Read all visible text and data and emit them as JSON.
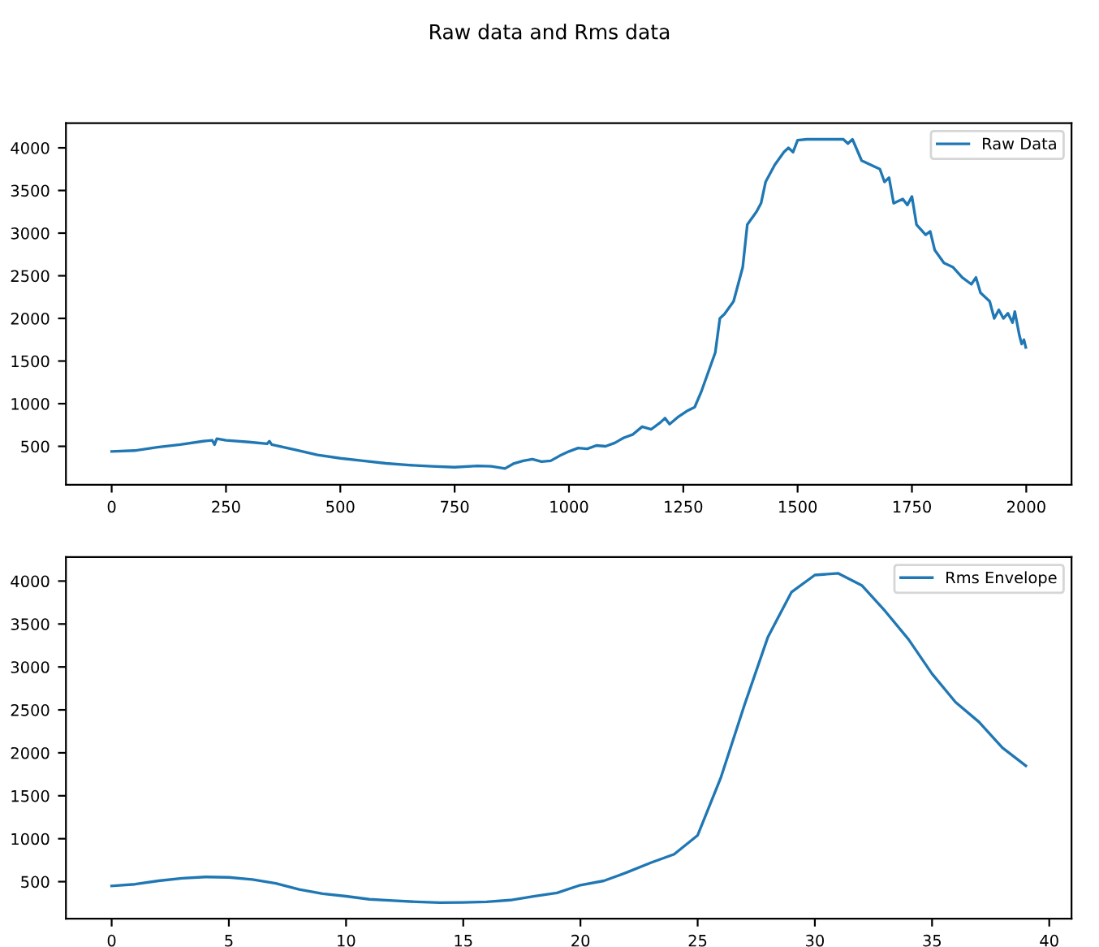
{
  "chart_data": [
    {
      "type": "line",
      "title": "Raw data and Rms data",
      "legend": "top right",
      "grid": false,
      "xlim": [
        -100,
        2099
      ],
      "xticks": [
        0,
        250,
        500,
        750,
        1000,
        1250,
        1500,
        1750,
        2000
      ],
      "ylim": [
        50,
        4290
      ],
      "yticks": [
        500,
        1000,
        1500,
        2000,
        2500,
        3000,
        3500,
        4000
      ],
      "series": [
        {
          "name": "Raw Data",
          "color": "#1f77b4",
          "x": [
            0,
            50,
            100,
            150,
            200,
            220,
            225,
            230,
            250,
            300,
            340,
            345,
            350,
            400,
            450,
            500,
            550,
            600,
            650,
            700,
            750,
            800,
            830,
            860,
            880,
            900,
            920,
            940,
            960,
            980,
            1000,
            1020,
            1040,
            1060,
            1080,
            1100,
            1120,
            1140,
            1160,
            1180,
            1200,
            1210,
            1220,
            1240,
            1260,
            1275,
            1290,
            1300,
            1320,
            1330,
            1340,
            1360,
            1380,
            1390,
            1410,
            1420,
            1430,
            1450,
            1470,
            1480,
            1490,
            1500,
            1520,
            1560,
            1600,
            1610,
            1620,
            1640,
            1660,
            1680,
            1690,
            1700,
            1710,
            1730,
            1740,
            1750,
            1760,
            1780,
            1790,
            1800,
            1820,
            1840,
            1860,
            1880,
            1890,
            1900,
            1920,
            1930,
            1940,
            1950,
            1960,
            1970,
            1975,
            1985,
            1990,
            1995,
            1999
          ],
          "values": [
            440,
            450,
            490,
            520,
            560,
            570,
            520,
            590,
            570,
            550,
            530,
            560,
            520,
            460,
            400,
            360,
            330,
            300,
            280,
            265,
            255,
            270,
            265,
            240,
            300,
            330,
            350,
            320,
            330,
            390,
            440,
            480,
            470,
            510,
            500,
            540,
            600,
            640,
            730,
            700,
            780,
            830,
            760,
            850,
            920,
            960,
            1150,
            1300,
            1600,
            2000,
            2050,
            2200,
            2600,
            3100,
            3250,
            3350,
            3600,
            3800,
            3950,
            4000,
            3950,
            4090,
            4100,
            4100,
            4100,
            4050,
            4100,
            3850,
            3800,
            3750,
            3600,
            3650,
            3350,
            3400,
            3330,
            3430,
            3100,
            2980,
            3020,
            2800,
            2650,
            2600,
            2480,
            2400,
            2480,
            2300,
            2200,
            2000,
            2100,
            2000,
            2060,
            1950,
            2080,
            1800,
            1700,
            1750,
            1660
          ]
        }
      ]
    },
    {
      "type": "line",
      "legend": "top right",
      "grid": false,
      "xlim": [
        -1.95,
        40.95
      ],
      "xticks": [
        0,
        5,
        10,
        15,
        20,
        25,
        30,
        35,
        40
      ],
      "ylim": [
        70,
        4280
      ],
      "yticks": [
        500,
        1000,
        1500,
        2000,
        2500,
        3000,
        3500,
        4000
      ],
      "series": [
        {
          "name": "Rms Envelope",
          "color": "#1f77b4",
          "x": [
            0,
            1,
            2,
            3,
            4,
            5,
            6,
            7,
            8,
            9,
            10,
            11,
            12,
            13,
            14,
            15,
            16,
            17,
            18,
            19,
            20,
            21,
            22,
            23,
            24,
            25,
            26,
            27,
            28,
            29,
            30,
            31,
            32,
            33,
            34,
            35,
            36,
            37,
            38,
            39
          ],
          "values": [
            450,
            470,
            510,
            540,
            555,
            550,
            525,
            480,
            410,
            360,
            330,
            295,
            280,
            265,
            255,
            258,
            265,
            285,
            330,
            370,
            460,
            510,
            610,
            720,
            820,
            1040,
            1720,
            2560,
            3350,
            3870,
            4070,
            4090,
            3950,
            3650,
            3320,
            2920,
            2590,
            2360,
            2060,
            1850
          ]
        }
      ]
    }
  ]
}
